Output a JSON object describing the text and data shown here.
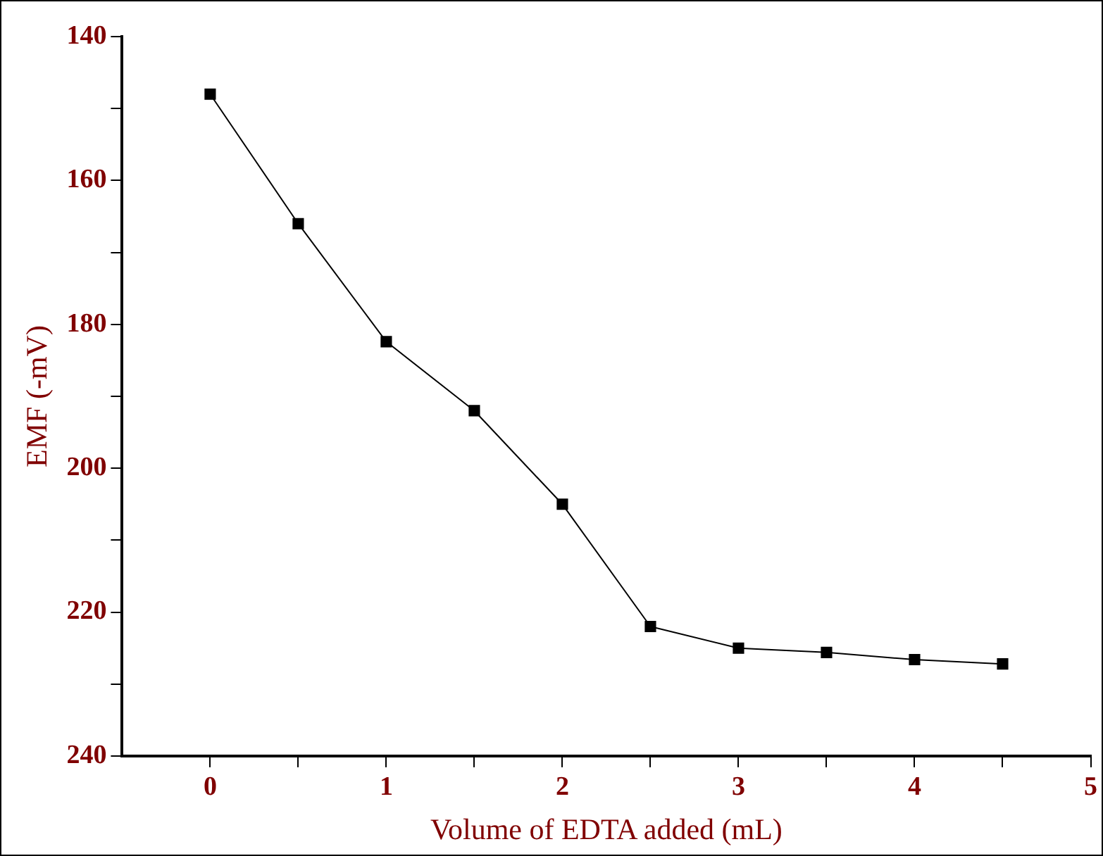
{
  "chart_data": {
    "type": "line",
    "xlabel": "Volume of EDTA added (mL)",
    "ylabel": "EMF (-mV)",
    "x": [
      0,
      0.5,
      1,
      1.5,
      2,
      2.5,
      3,
      3.5,
      4,
      4.5
    ],
    "series": [
      {
        "color": "#000000",
        "values": [
          148,
          166,
          182.4,
          192,
          205,
          222,
          225,
          225.6,
          226.6,
          227.2
        ]
      }
    ],
    "xlim": [
      -0.5,
      5
    ],
    "ylim": [
      240,
      140
    ],
    "xticks": [
      0,
      {
        "value": 0.5,
        "label": null
      },
      1,
      {
        "value": 1.5,
        "label": null
      },
      2,
      {
        "value": 2.5,
        "label": null
      },
      3,
      {
        "value": 3.5,
        "label": null
      },
      4,
      {
        "value": 4.5,
        "label": null
      },
      5
    ],
    "yticks": [
      140,
      {
        "value": 150,
        "label": null
      },
      160,
      {
        "value": 170,
        "label": null
      },
      180,
      {
        "value": 190,
        "label": null
      },
      200,
      {
        "value": 210,
        "label": null
      },
      220,
      {
        "value": 230,
        "label": null
      },
      240
    ],
    "marker": "square",
    "line_style": "solid",
    "grid": false,
    "legend": false
  }
}
